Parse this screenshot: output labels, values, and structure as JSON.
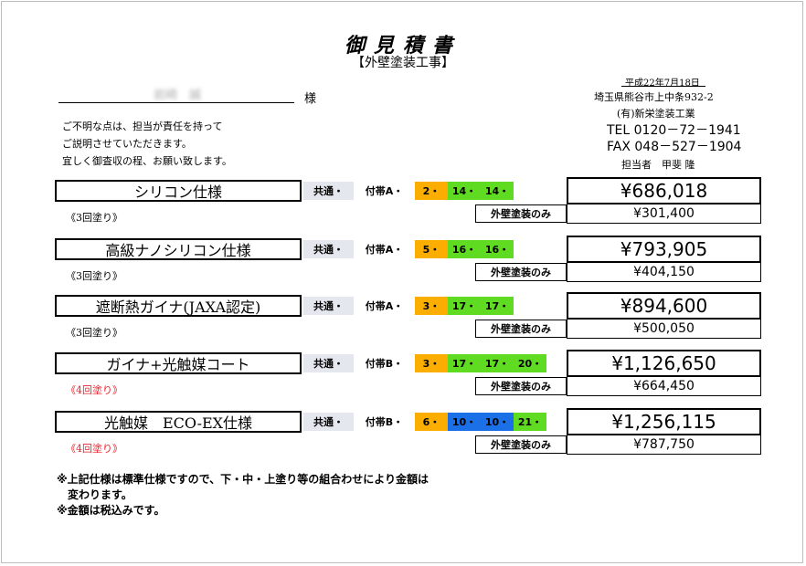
{
  "document": {
    "title": "御見積書",
    "subtitle": "【外壁塗装工事】",
    "customer_name": "岩崎　誠",
    "honorific": "様",
    "intro": [
      "ご不明な点は、担当が責任を持って",
      "ご説明させていただきます。",
      "宜しく御査収の程、お願い致します。"
    ],
    "date": "平成22年7月18日",
    "company": {
      "address": "埼玉県熊谷市上中条932-2",
      "name": "(有)新栄塗装工業",
      "tel": "TEL 0120－72－1941",
      "fax": "FAX 048－527－1904",
      "staff": "担当者　甲斐 隆"
    }
  },
  "rows": [
    {
      "name": "シリコン仕様",
      "coats": "《3回塗り》",
      "coats_color": "#000000",
      "common": "共通・",
      "attach": "付帯A・",
      "codes": [
        {
          "label": "2・",
          "color": "orange"
        },
        {
          "label": "14・",
          "color": "green"
        },
        {
          "label": "14・",
          "color": "green"
        }
      ],
      "price": "¥686,018",
      "exterior_label": "外壁塗装のみ",
      "exterior_price": "¥301,400"
    },
    {
      "name": "高級ナノシリコン仕様",
      "coats": "《3回塗り》",
      "coats_color": "#000000",
      "common": "共通・",
      "attach": "付帯A・",
      "codes": [
        {
          "label": "5・",
          "color": "orange"
        },
        {
          "label": "16・",
          "color": "green"
        },
        {
          "label": "16・",
          "color": "green"
        }
      ],
      "price": "¥793,905",
      "exterior_label": "外壁塗装のみ",
      "exterior_price": "¥404,150"
    },
    {
      "name": "遮断熱ガイナ(JAXA認定)",
      "coats": "《3回塗り》",
      "coats_color": "#000000",
      "common": "共通・",
      "attach": "付帯A・",
      "codes": [
        {
          "label": "3・",
          "color": "orange"
        },
        {
          "label": "17・",
          "color": "green"
        },
        {
          "label": "17・",
          "color": "green"
        }
      ],
      "price": "¥894,600",
      "exterior_label": "外壁塗装のみ",
      "exterior_price": "¥500,050"
    },
    {
      "name": "ガイナ+光触媒コート",
      "coats": "《4回塗り》",
      "coats_color": "#e8222e",
      "common": "共通・",
      "attach": "付帯B・",
      "codes": [
        {
          "label": "3・",
          "color": "orange"
        },
        {
          "label": "17・",
          "color": "green"
        },
        {
          "label": "17・",
          "color": "green"
        },
        {
          "label": "20・",
          "color": "green"
        }
      ],
      "price": "¥1,126,650",
      "exterior_label": "外壁塗装のみ",
      "exterior_price": "¥664,450"
    },
    {
      "name": "光触媒　ECO-EX仕様",
      "coats": "《4回塗り》",
      "coats_color": "#e8222e",
      "common": "共通・",
      "attach": "付帯B・",
      "codes": [
        {
          "label": "6・",
          "color": "orange"
        },
        {
          "label": "10・",
          "color": "blue"
        },
        {
          "label": "10・",
          "color": "blue"
        },
        {
          "label": "21・",
          "color": "green"
        }
      ],
      "price": "¥1,256,115",
      "exterior_label": "外壁塗装のみ",
      "exterior_price": "¥787,750"
    }
  ],
  "colors": {
    "orange": "#fcae00",
    "green": "#5fdc21",
    "blue": "#1b6fe7",
    "grey": "#e5e7ee"
  },
  "notes": [
    "※上記仕様は標準仕様ですので、下・中・上塗り等の組合わせにより金額は",
    "　変わります。",
    "※金額は税込みです。"
  ]
}
